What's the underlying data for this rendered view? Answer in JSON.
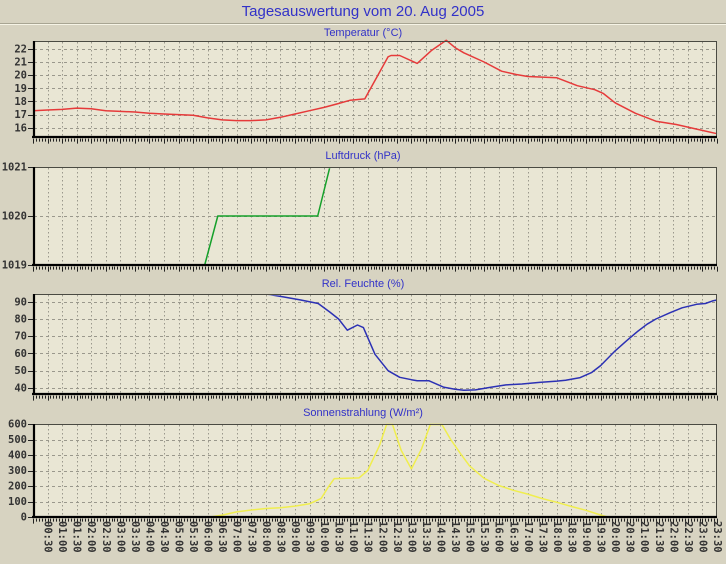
{
  "header": {
    "title": "Tagesauswertung vom 20. Aug 2005"
  },
  "colors": {
    "page_bg": "#d7d3c1",
    "plot_bg": "#e9e6d4",
    "grid": "#9a988c",
    "frame_thin": "#4a4a42",
    "frame_thick": "#000000",
    "tick_text": "#333333",
    "title_blue": "#3232c8",
    "temperature_line": "#e63a3a",
    "pressure_line": "#15a02a",
    "humidity_line": "#2c31b4",
    "radiation_line": "#f0ee4e"
  },
  "chart_data": {
    "type": "line",
    "x_axis": {
      "unit": "time_of_day_hours",
      "start_hour": 0,
      "end_hour": 23.5,
      "tick_interval_min": 30,
      "label_rotation_deg": 90,
      "tick_labels": [
        "00:30",
        "01:00",
        "01:30",
        "02:00",
        "02:30",
        "03:00",
        "03:30",
        "04:00",
        "04:30",
        "05:00",
        "05:30",
        "06:00",
        "06:30",
        "07:00",
        "07:30",
        "08:00",
        "08:30",
        "09:00",
        "09:30",
        "10:00",
        "10:30",
        "11:00",
        "11:30",
        "12:00",
        "12:30",
        "13:00",
        "13:30",
        "14:00",
        "14:30",
        "15:00",
        "15:30",
        "16:00",
        "16:30",
        "17:00",
        "17:30",
        "18:00",
        "18:30",
        "19:00",
        "19:30",
        "20:00",
        "20:30",
        "21:00",
        "21:30",
        "22:00",
        "22:30",
        "23:00",
        "23:30"
      ]
    },
    "charts": [
      {
        "id": "temperature",
        "title": "Temperatur (°C)",
        "color": "#e63a3a",
        "ylim": [
          15.3,
          22.6
        ],
        "yticks": [
          16,
          17,
          18,
          19,
          20,
          21,
          22
        ],
        "clip": false,
        "points": [
          [
            0,
            17.3
          ],
          [
            0.5,
            17.35
          ],
          [
            1,
            17.4
          ],
          [
            1.5,
            17.5
          ],
          [
            2,
            17.45
          ],
          [
            2.5,
            17.3
          ],
          [
            3,
            17.25
          ],
          [
            3.5,
            17.2
          ],
          [
            4,
            17.1
          ],
          [
            4.5,
            17.05
          ],
          [
            5,
            17.0
          ],
          [
            5.5,
            16.95
          ],
          [
            6,
            16.75
          ],
          [
            6.5,
            16.6
          ],
          [
            7,
            16.55
          ],
          [
            7.5,
            16.55
          ],
          [
            8,
            16.6
          ],
          [
            8.5,
            16.8
          ],
          [
            9,
            17.05
          ],
          [
            9.5,
            17.3
          ],
          [
            10,
            17.55
          ],
          [
            10.5,
            17.85
          ],
          [
            10.9,
            18.1
          ],
          [
            11.4,
            18.2
          ],
          [
            12.2,
            21.4
          ],
          [
            12.3,
            21.5
          ],
          [
            12.6,
            21.5
          ],
          [
            13.2,
            20.9
          ],
          [
            13.7,
            21.9
          ],
          [
            14.2,
            22.65
          ],
          [
            14.5,
            22.1
          ],
          [
            14.8,
            21.7
          ],
          [
            15.5,
            21.0
          ],
          [
            16.1,
            20.3
          ],
          [
            16.6,
            20.05
          ],
          [
            17,
            19.9
          ],
          [
            18,
            19.8
          ],
          [
            18.7,
            19.2
          ],
          [
            19.3,
            18.9
          ],
          [
            19.6,
            18.6
          ],
          [
            20,
            17.9
          ],
          [
            20.7,
            17.1
          ],
          [
            21.4,
            16.5
          ],
          [
            22.1,
            16.25
          ],
          [
            22.8,
            15.9
          ],
          [
            23.5,
            15.55
          ]
        ]
      },
      {
        "id": "pressure",
        "title": "Luftdruck (hPa)",
        "color": "#15a02a",
        "ylim": [
          1019,
          1021
        ],
        "yticks": [
          1019,
          1020,
          1021
        ],
        "clip": true,
        "points": [
          [
            0,
            1019
          ],
          [
            5.9,
            1019
          ],
          [
            6.35,
            1020
          ],
          [
            9.78,
            1020
          ],
          [
            10.45,
            1021.6
          ]
        ]
      },
      {
        "id": "humidity",
        "title": "Rel. Feuchte (%)",
        "color": "#2c31b4",
        "ylim": [
          36.5,
          94.5
        ],
        "yticks": [
          40,
          50,
          60,
          70,
          80,
          90
        ],
        "clip": true,
        "points": [
          [
            0,
            96
          ],
          [
            7.8,
            96
          ],
          [
            8.0,
            94.5
          ],
          [
            8.6,
            92.8
          ],
          [
            9.2,
            91
          ],
          [
            9.8,
            89
          ],
          [
            10.2,
            84
          ],
          [
            10.5,
            80
          ],
          [
            10.8,
            73.5
          ],
          [
            11.15,
            76.5
          ],
          [
            11.35,
            75
          ],
          [
            11.75,
            59.5
          ],
          [
            12.2,
            50
          ],
          [
            12.6,
            46.2
          ],
          [
            13.0,
            44.8
          ],
          [
            13.2,
            44.2
          ],
          [
            13.6,
            44.2
          ],
          [
            14.1,
            40.5
          ],
          [
            14.5,
            39.3
          ],
          [
            14.8,
            38.7
          ],
          [
            15.2,
            38.9
          ],
          [
            15.7,
            40.3
          ],
          [
            16.25,
            41.8
          ],
          [
            16.8,
            42.3
          ],
          [
            17.4,
            43.2
          ],
          [
            18.0,
            44.0
          ],
          [
            18.3,
            44.5
          ],
          [
            18.8,
            46
          ],
          [
            19.2,
            49
          ],
          [
            19.5,
            53
          ],
          [
            20.0,
            61.5
          ],
          [
            20.4,
            67.5
          ],
          [
            20.75,
            72.5
          ],
          [
            21.1,
            77
          ],
          [
            21.4,
            80
          ],
          [
            21.9,
            83.7
          ],
          [
            22.3,
            86.5
          ],
          [
            22.8,
            88.5
          ],
          [
            23.1,
            89
          ],
          [
            23.35,
            90.5
          ],
          [
            23.5,
            91
          ]
        ]
      },
      {
        "id": "radiation",
        "title": "Sonnenstrahlung (W/m²)",
        "color": "#f0ee4e",
        "ylim": [
          0,
          600
        ],
        "yticks": [
          0,
          100,
          200,
          300,
          400,
          500,
          600
        ],
        "clip": false,
        "points": [
          [
            0,
            0
          ],
          [
            6.1,
            0
          ],
          [
            6.5,
            12
          ],
          [
            7.0,
            33
          ],
          [
            7.5,
            45
          ],
          [
            8.0,
            55
          ],
          [
            8.5,
            60
          ],
          [
            9.0,
            70
          ],
          [
            9.5,
            85
          ],
          [
            9.9,
            120
          ],
          [
            10.15,
            195
          ],
          [
            10.35,
            248
          ],
          [
            11.2,
            252
          ],
          [
            11.5,
            300
          ],
          [
            11.9,
            460
          ],
          [
            12.15,
            597
          ],
          [
            12.35,
            597
          ],
          [
            12.65,
            430
          ],
          [
            13.0,
            310
          ],
          [
            13.35,
            440
          ],
          [
            13.65,
            597
          ],
          [
            14.05,
            597
          ],
          [
            14.35,
            500
          ],
          [
            14.7,
            405
          ],
          [
            15.0,
            330
          ],
          [
            15.5,
            250
          ],
          [
            16.0,
            203
          ],
          [
            16.5,
            172
          ],
          [
            17.0,
            148
          ],
          [
            17.5,
            119
          ],
          [
            18.0,
            95
          ],
          [
            18.5,
            68
          ],
          [
            19.0,
            43
          ],
          [
            19.35,
            22
          ],
          [
            19.7,
            2
          ],
          [
            19.8,
            0
          ],
          [
            23.5,
            0
          ]
        ]
      }
    ]
  }
}
